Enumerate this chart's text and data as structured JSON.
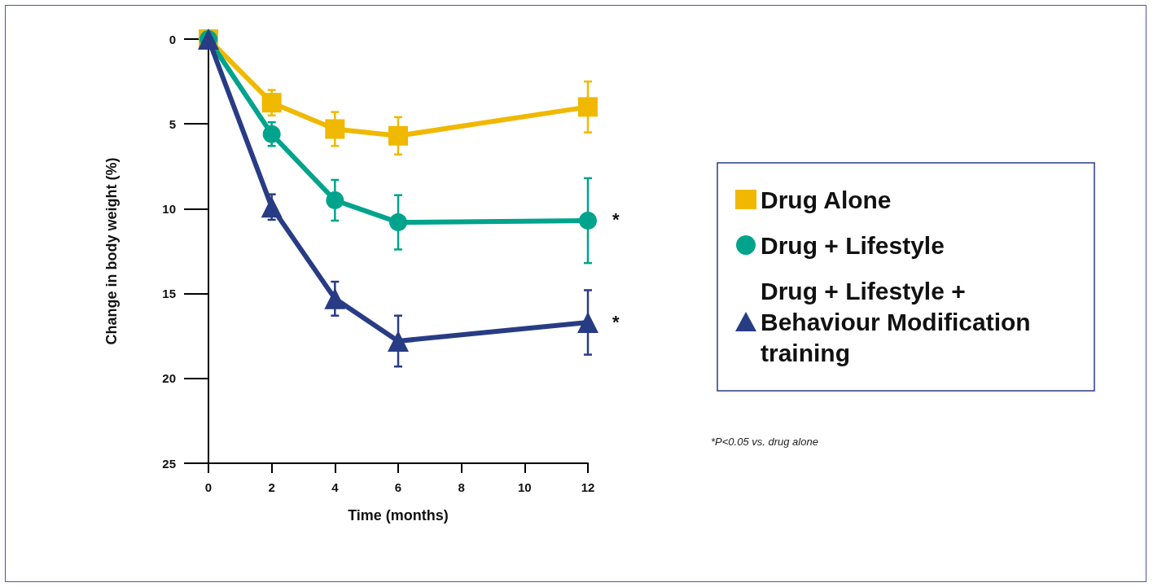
{
  "chart_data": {
    "type": "line",
    "xlabel": "Time (months)",
    "ylabel": "Change in body weight (%)",
    "x": [
      0,
      2,
      4,
      6,
      12
    ],
    "series": [
      {
        "name": "Drug Alone",
        "color": "#f0b800",
        "marker": "square",
        "values": [
          0,
          3.75,
          5.3,
          5.7,
          4.0
        ],
        "errors": [
          null,
          0.75,
          1.0,
          1.1,
          1.5
        ]
      },
      {
        "name": "Drug + Lifestyle",
        "color": "#00a38c",
        "marker": "circle",
        "values": [
          0,
          5.6,
          9.5,
          10.8,
          10.7
        ],
        "errors": [
          null,
          0.7,
          1.2,
          1.6,
          2.5
        ]
      },
      {
        "name": "Drug + Lifestyle + Behaviour Modification training",
        "color": "#283c85",
        "marker": "triangle",
        "values": [
          0,
          9.9,
          15.3,
          17.8,
          16.7
        ],
        "errors": [
          null,
          0.75,
          1.0,
          1.5,
          1.9
        ]
      }
    ],
    "xlim": [
      0,
      12
    ],
    "xticks": [
      0,
      2,
      4,
      6,
      8,
      10,
      12
    ],
    "ylim": [
      25,
      0
    ],
    "yticks": [
      0,
      5,
      10,
      15,
      20,
      25
    ],
    "grid": false,
    "legend": "right",
    "line_style": "solid",
    "annotations": [
      {
        "text": "*",
        "x": 12,
        "y": 10.7
      },
      {
        "text": "*",
        "x": 12,
        "y": 16.7
      },
      "*P<0.05 vs. drug alone"
    ]
  }
}
